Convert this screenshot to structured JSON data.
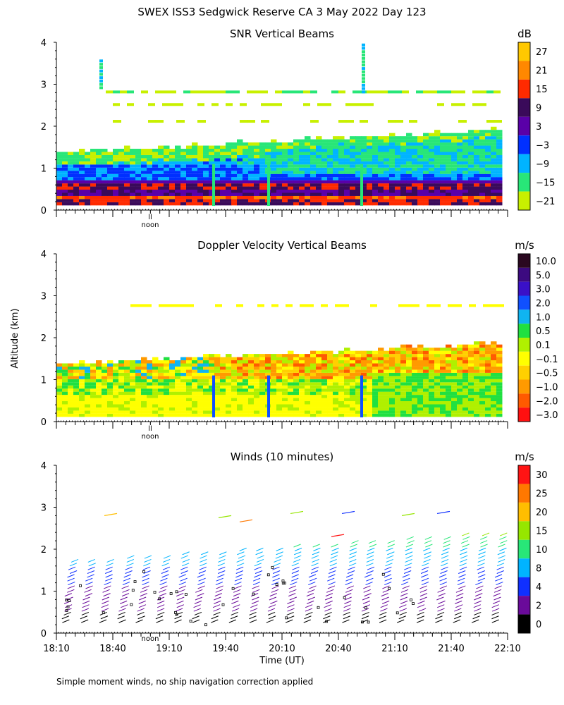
{
  "figure": {
    "title": "SWEX ISS3 Sedgwick Reserve CA   3 May 2022 Day 123",
    "ylabel": "Altitude (km)",
    "footnote": "Simple moment winds, no ship navigation correction applied",
    "noon_label": "noon",
    "noon_marker": "ll"
  },
  "chart_data": [
    {
      "type": "heatmap",
      "title": "SNR Vertical Beams",
      "units": "dB",
      "ylim": [
        0,
        4
      ],
      "yticks": [
        "0",
        "1",
        "2",
        "3",
        "4"
      ],
      "colorbar": {
        "labels": [
          "27",
          "21",
          "15",
          "9",
          "3",
          "−3",
          "−9",
          "−15",
          "−21"
        ],
        "colors": [
          "#ffc800",
          "#ff8800",
          "#ff2a00",
          "#3a0a5a",
          "#5a00a8",
          "#0030ff",
          "#00b4ff",
          "#28e678",
          "#c8f000"
        ]
      },
      "shown_xticks": false
    },
    {
      "type": "heatmap",
      "title": "Doppler Velocity Vertical Beams",
      "units": "m/s",
      "ylim": [
        0,
        4
      ],
      "yticks": [
        "0",
        "1",
        "2",
        "3",
        "4"
      ],
      "colorbar": {
        "labels": [
          "10.0",
          "5.0",
          "3.0",
          "2.0",
          "1.0",
          "0.5",
          "0.1",
          "−0.1",
          "−0.5",
          "−1.0",
          "−2.0",
          "−3.0"
        ],
        "colors": [
          "#2a0820",
          "#3c0a80",
          "#3a10c8",
          "#1050ff",
          "#10b4f0",
          "#20e040",
          "#b0f000",
          "#ffff00",
          "#ffd000",
          "#ff9a00",
          "#ff5a00",
          "#ff1010"
        ]
      },
      "shown_xticks": false
    },
    {
      "type": "scatter",
      "title": "Winds (10 minutes)",
      "units": "m/s",
      "ylim": [
        0,
        4
      ],
      "yticks": [
        "0",
        "1",
        "2",
        "3",
        "4"
      ],
      "xlabel": "Time (UT)",
      "xticks": [
        "18:10",
        "18:40",
        "19:10",
        "19:40",
        "20:10",
        "20:40",
        "21:10",
        "21:40",
        "22:10"
      ],
      "colorbar": {
        "labels": [
          "30",
          "25",
          "20",
          "15",
          "10",
          "8",
          "4",
          "2",
          "0"
        ],
        "colors": [
          "#ff1414",
          "#ff7800",
          "#ffbe00",
          "#96e600",
          "#28e678",
          "#00b4ff",
          "#1030ff",
          "#6a0a9a",
          "#000000"
        ]
      },
      "shown_xticks": true
    }
  ]
}
